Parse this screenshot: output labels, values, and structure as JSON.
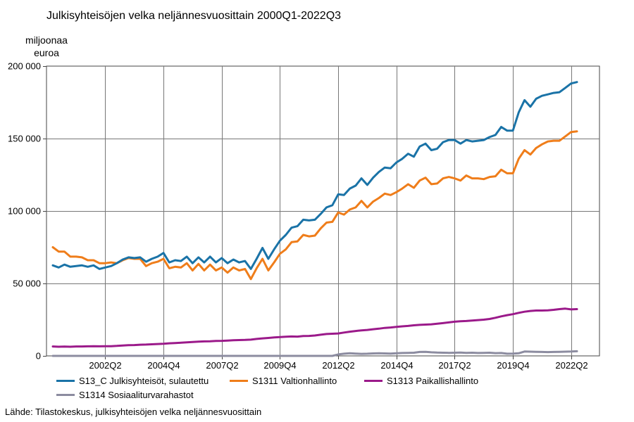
{
  "title": "Julkisyhteisöjen velka neljännesvuosittain 2000Q1-2022Q3",
  "source": "Lähde: Tilastokeskus, julkisyhteisöjen velka neljännesvuosittain",
  "chart_data": {
    "type": "line",
    "title": "Julkisyhteisöjen velka neljännesvuosittain 2000Q1-2022Q3",
    "ylabel": [
      "miljoonaa",
      "euroa"
    ],
    "xlabel": "",
    "ylim": [
      0,
      200000
    ],
    "yticks": [
      0,
      50000,
      100000,
      150000,
      200000
    ],
    "ytick_labels": [
      "0",
      "50 000",
      "100 000",
      "150 000",
      "200 000"
    ],
    "xtick_labels": [
      "2002Q2",
      "2004Q4",
      "2007Q2",
      "2009Q4",
      "2012Q2",
      "2014Q4",
      "2017Q2",
      "2019Q4",
      "2022Q2"
    ],
    "xtick_indices": [
      9,
      19,
      29,
      39,
      49,
      59,
      69,
      79,
      89
    ],
    "n_quarters": 91,
    "grid": true,
    "legend_position": "bottom",
    "series": [
      {
        "name": "S13_C Julkisyhteisöt, sulautettu",
        "color": "#1a73a7",
        "values": [
          62500,
          61000,
          63000,
          61500,
          62000,
          62500,
          61500,
          62500,
          60000,
          61000,
          62000,
          64000,
          66500,
          68000,
          67500,
          68000,
          65000,
          67000,
          68500,
          71000,
          64500,
          66000,
          65500,
          68500,
          64000,
          68000,
          64500,
          68500,
          64500,
          67500,
          64000,
          66500,
          64500,
          65500,
          60000,
          67000,
          74500,
          67000,
          73500,
          79500,
          83500,
          88500,
          89500,
          94000,
          93500,
          94000,
          98000,
          102500,
          104000,
          111500,
          111000,
          115500,
          117500,
          122500,
          118000,
          123000,
          127000,
          130000,
          129500,
          133500,
          136000,
          139500,
          137500,
          144500,
          146500,
          142000,
          143000,
          147500,
          149000,
          149000,
          146500,
          149000,
          148000,
          148500,
          149000,
          151000,
          152500,
          158000,
          155500,
          155500,
          168000,
          176500,
          172000,
          177500,
          179500,
          180500,
          181500,
          182000,
          185000,
          188000,
          189000
        ]
      },
      {
        "name": "S1311 Valtionhallinto",
        "color": "#ef7d1a",
        "values": [
          75000,
          72000,
          72000,
          68500,
          68500,
          68000,
          66000,
          66000,
          64000,
          64000,
          64500,
          64000,
          66000,
          67500,
          67000,
          67000,
          62000,
          64000,
          65000,
          67000,
          60500,
          61500,
          61000,
          64000,
          59000,
          63500,
          59000,
          63000,
          59000,
          61000,
          57500,
          61000,
          59000,
          60000,
          53000,
          60500,
          67000,
          59000,
          64500,
          70500,
          73500,
          78500,
          79000,
          83500,
          82500,
          83000,
          88000,
          92000,
          92500,
          99000,
          97500,
          101000,
          102500,
          107000,
          102500,
          106500,
          109000,
          112000,
          111000,
          113000,
          115500,
          118500,
          116000,
          121000,
          123000,
          118500,
          119000,
          122500,
          123500,
          122500,
          121000,
          124500,
          122500,
          122500,
          122000,
          123500,
          124000,
          128500,
          126000,
          126000,
          136000,
          142000,
          139000,
          143500,
          146000,
          148000,
          148500,
          148500,
          151500,
          154500,
          155000
        ]
      },
      {
        "name": "S1313 Paikallishallinto",
        "color": "#9b1a8a",
        "values": [
          6500,
          6300,
          6400,
          6300,
          6500,
          6500,
          6600,
          6700,
          6600,
          6700,
          6700,
          6900,
          7200,
          7400,
          7500,
          7700,
          7800,
          8000,
          8200,
          8400,
          8700,
          8900,
          9100,
          9300,
          9600,
          9800,
          10000,
          10100,
          10300,
          10400,
          10600,
          10800,
          10900,
          11000,
          11200,
          11700,
          12100,
          12400,
          12700,
          13000,
          13200,
          13400,
          13300,
          13700,
          13800,
          14100,
          14600,
          15100,
          15300,
          15500,
          16100,
          16700,
          17200,
          17600,
          17900,
          18400,
          18800,
          19300,
          19600,
          20000,
          20400,
          20700,
          21100,
          21400,
          21600,
          21800,
          22200,
          22600,
          23100,
          23600,
          23900,
          24100,
          24400,
          24700,
          25000,
          25500,
          26300,
          27300,
          28100,
          28800,
          29700,
          30500,
          31000,
          31300,
          31300,
          31400,
          31800,
          32300,
          32600,
          32100,
          32300
        ]
      },
      {
        "name": "S1314 Sosiaaliturvarahastot",
        "color": "#8c8ca0",
        "values": [
          0,
          0,
          0,
          0,
          0,
          0,
          0,
          0,
          0,
          0,
          0,
          0,
          0,
          0,
          0,
          0,
          0,
          0,
          0,
          0,
          0,
          0,
          0,
          0,
          0,
          0,
          0,
          0,
          0,
          0,
          0,
          0,
          0,
          0,
          0,
          0,
          0,
          0,
          0,
          0,
          0,
          0,
          0,
          0,
          0,
          0,
          0,
          0,
          0,
          1000,
          1500,
          1800,
          1600,
          1400,
          1500,
          1700,
          1800,
          1700,
          1600,
          1800,
          2000,
          2100,
          2200,
          2700,
          2800,
          2500,
          2300,
          2200,
          2100,
          2200,
          2300,
          2100,
          2200,
          2000,
          2100,
          2200,
          1900,
          2000,
          1500,
          1600,
          1800,
          3000,
          2900,
          2800,
          2700,
          2600,
          2700,
          2800,
          2900,
          3000,
          3200
        ]
      }
    ]
  }
}
